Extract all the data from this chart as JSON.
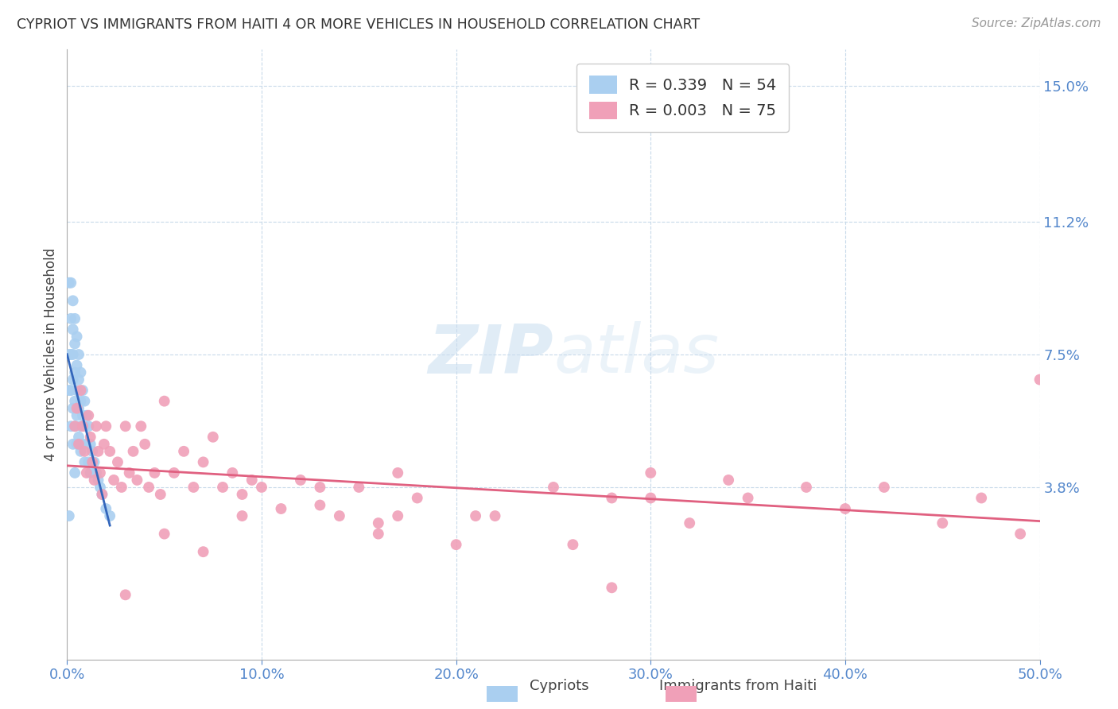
{
  "title": "CYPRIOT VS IMMIGRANTS FROM HAITI 4 OR MORE VEHICLES IN HOUSEHOLD CORRELATION CHART",
  "source": "Source: ZipAtlas.com",
  "ylabel": "4 or more Vehicles in Household",
  "xlim": [
    0.0,
    0.5
  ],
  "ylim": [
    -0.01,
    0.16
  ],
  "xticks": [
    0.0,
    0.1,
    0.2,
    0.3,
    0.4,
    0.5
  ],
  "xticklabels": [
    "0.0%",
    "10.0%",
    "20.0%",
    "30.0%",
    "40.0%",
    "50.0%"
  ],
  "ytick_positions": [
    0.0,
    0.038,
    0.075,
    0.112,
    0.15
  ],
  "ytick_labels": [
    "",
    "3.8%",
    "7.5%",
    "11.2%",
    "15.0%"
  ],
  "legend_R_cypriot": "R = 0.339",
  "legend_N_cypriot": "N = 54",
  "legend_R_haiti": "R = 0.003",
  "legend_N_haiti": "N = 75",
  "cypriot_color": "#aacff0",
  "haiti_color": "#f0a0b8",
  "cypriot_line_color": "#3366bb",
  "haiti_line_color": "#e06080",
  "cypriot_x": [
    0.001,
    0.001,
    0.001,
    0.001,
    0.002,
    0.002,
    0.002,
    0.002,
    0.002,
    0.003,
    0.003,
    0.003,
    0.003,
    0.003,
    0.003,
    0.004,
    0.004,
    0.004,
    0.004,
    0.004,
    0.004,
    0.005,
    0.005,
    0.005,
    0.005,
    0.005,
    0.006,
    0.006,
    0.006,
    0.006,
    0.007,
    0.007,
    0.007,
    0.007,
    0.008,
    0.008,
    0.008,
    0.009,
    0.009,
    0.009,
    0.01,
    0.01,
    0.011,
    0.011,
    0.012,
    0.012,
    0.013,
    0.014,
    0.015,
    0.016,
    0.017,
    0.018,
    0.02,
    0.022
  ],
  "cypriot_y": [
    0.095,
    0.075,
    0.065,
    0.03,
    0.095,
    0.085,
    0.075,
    0.065,
    0.055,
    0.09,
    0.082,
    0.075,
    0.068,
    0.06,
    0.05,
    0.085,
    0.078,
    0.07,
    0.062,
    0.055,
    0.042,
    0.08,
    0.072,
    0.065,
    0.058,
    0.05,
    0.075,
    0.068,
    0.06,
    0.052,
    0.07,
    0.062,
    0.055,
    0.048,
    0.065,
    0.058,
    0.05,
    0.062,
    0.055,
    0.045,
    0.058,
    0.05,
    0.055,
    0.045,
    0.05,
    0.042,
    0.048,
    0.045,
    0.042,
    0.04,
    0.038,
    0.036,
    0.032,
    0.03
  ],
  "haiti_x": [
    0.004,
    0.005,
    0.006,
    0.007,
    0.008,
    0.009,
    0.01,
    0.011,
    0.012,
    0.013,
    0.014,
    0.015,
    0.016,
    0.017,
    0.018,
    0.019,
    0.02,
    0.022,
    0.024,
    0.026,
    0.028,
    0.03,
    0.032,
    0.034,
    0.036,
    0.038,
    0.04,
    0.042,
    0.045,
    0.048,
    0.05,
    0.055,
    0.06,
    0.065,
    0.07,
    0.075,
    0.08,
    0.085,
    0.09,
    0.095,
    0.1,
    0.11,
    0.12,
    0.13,
    0.14,
    0.15,
    0.16,
    0.17,
    0.18,
    0.2,
    0.22,
    0.25,
    0.28,
    0.3,
    0.32,
    0.35,
    0.38,
    0.4,
    0.42,
    0.45,
    0.47,
    0.49,
    0.5,
    0.13,
    0.17,
    0.21,
    0.26,
    0.3,
    0.34,
    0.28,
    0.16,
    0.09,
    0.07,
    0.05,
    0.03
  ],
  "haiti_y": [
    0.055,
    0.06,
    0.05,
    0.065,
    0.055,
    0.048,
    0.042,
    0.058,
    0.052,
    0.045,
    0.04,
    0.055,
    0.048,
    0.042,
    0.036,
    0.05,
    0.055,
    0.048,
    0.04,
    0.045,
    0.038,
    0.055,
    0.042,
    0.048,
    0.04,
    0.055,
    0.05,
    0.038,
    0.042,
    0.036,
    0.062,
    0.042,
    0.048,
    0.038,
    0.045,
    0.052,
    0.038,
    0.042,
    0.036,
    0.04,
    0.038,
    0.032,
    0.04,
    0.038,
    0.03,
    0.038,
    0.025,
    0.03,
    0.035,
    0.022,
    0.03,
    0.038,
    0.035,
    0.042,
    0.028,
    0.035,
    0.038,
    0.032,
    0.038,
    0.028,
    0.035,
    0.025,
    0.068,
    0.033,
    0.042,
    0.03,
    0.022,
    0.035,
    0.04,
    0.01,
    0.028,
    0.03,
    0.02,
    0.025,
    0.008
  ]
}
